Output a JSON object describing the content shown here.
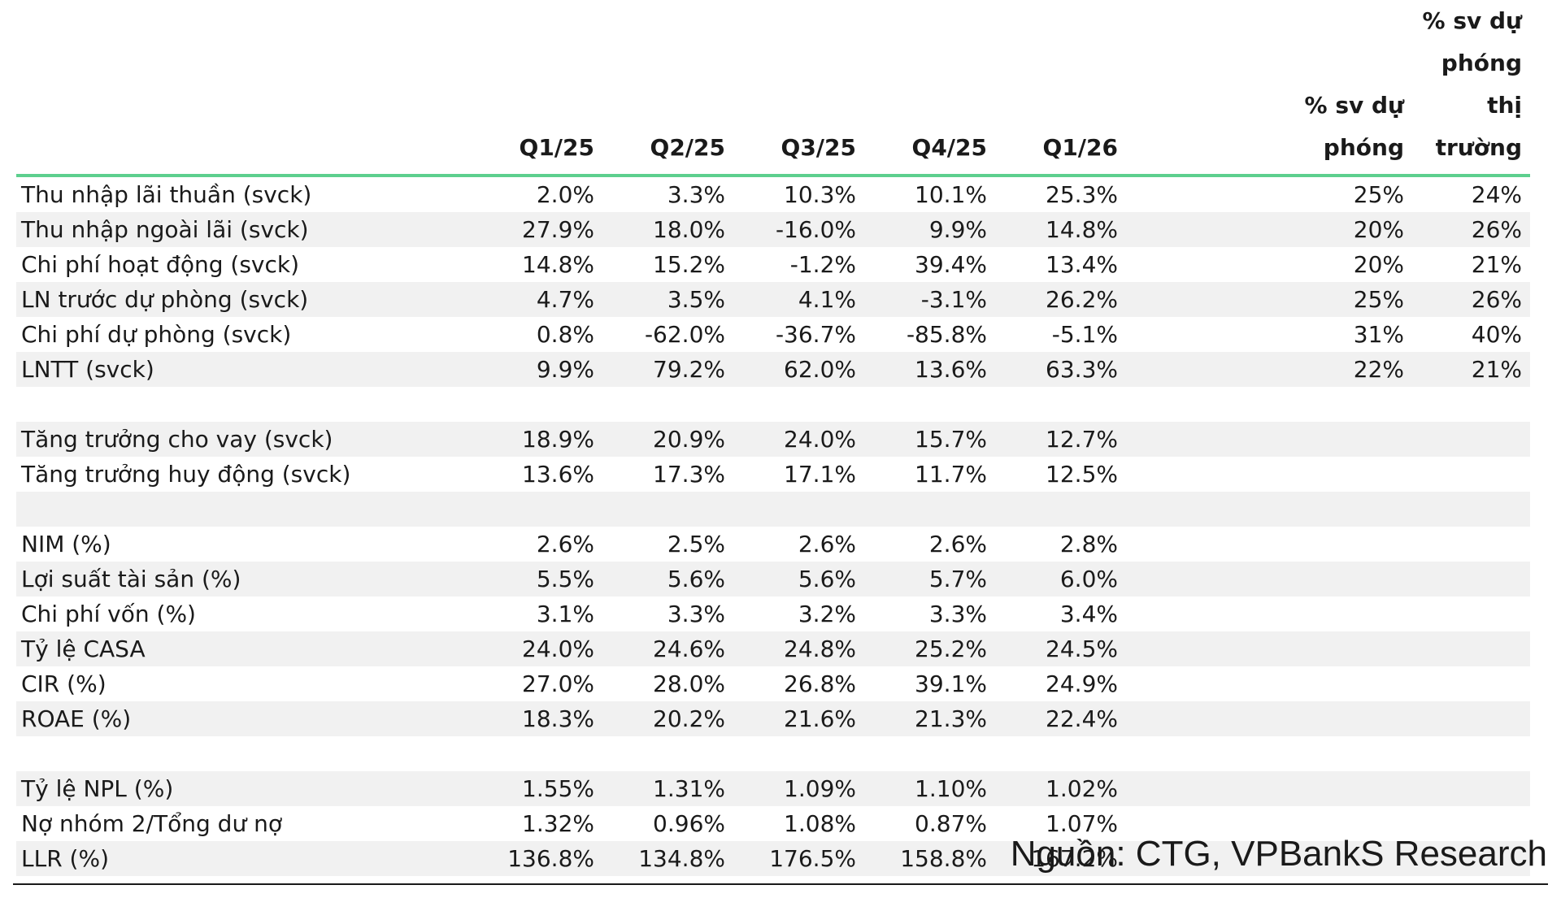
{
  "headers": {
    "label": "",
    "q1_25": "Q1/25",
    "q2_25": "Q2/25",
    "q3_25": "Q3/25",
    "q4_25": "Q4/25",
    "q1_26": "Q1/26",
    "pct_forecast": "% sv dự phóng",
    "pct_market": "% sv dự phóng thị trường"
  },
  "rows": [
    {
      "label": "Thu nhập lãi thuần (svck)",
      "v": [
        "2.0%",
        "3.3%",
        "10.3%",
        "10.1%",
        "25.3%"
      ],
      "pct_forecast": "25%",
      "pct_market": "24%"
    },
    {
      "label": "Thu nhập ngoài lãi (svck)",
      "v": [
        "27.9%",
        "18.0%",
        "-16.0%",
        "9.9%",
        "14.8%"
      ],
      "pct_forecast": "20%",
      "pct_market": "26%"
    },
    {
      "label": "Chi phí hoạt động (svck)",
      "v": [
        "14.8%",
        "15.2%",
        "-1.2%",
        "39.4%",
        "13.4%"
      ],
      "pct_forecast": "20%",
      "pct_market": "21%"
    },
    {
      "label": "LN trước dự phòng (svck)",
      "v": [
        "4.7%",
        "3.5%",
        "4.1%",
        "-3.1%",
        "26.2%"
      ],
      "pct_forecast": "25%",
      "pct_market": "26%"
    },
    {
      "label": "Chi phí dự phòng (svck)",
      "v": [
        "0.8%",
        "-62.0%",
        "-36.7%",
        "-85.8%",
        "-5.1%"
      ],
      "pct_forecast": "31%",
      "pct_market": "40%"
    },
    {
      "label": "LNTT (svck)",
      "v": [
        "9.9%",
        "79.2%",
        "62.0%",
        "13.6%",
        "63.3%"
      ],
      "pct_forecast": "22%",
      "pct_market": "21%"
    },
    {
      "label": "",
      "v": [
        "",
        "",
        "",
        "",
        ""
      ],
      "pct_forecast": "",
      "pct_market": ""
    },
    {
      "label": "Tăng trưởng cho vay (svck)",
      "v": [
        "18.9%",
        "20.9%",
        "24.0%",
        "15.7%",
        "12.7%"
      ],
      "pct_forecast": "",
      "pct_market": ""
    },
    {
      "label": "Tăng trưởng huy động (svck)",
      "v": [
        "13.6%",
        "17.3%",
        "17.1%",
        "11.7%",
        "12.5%"
      ],
      "pct_forecast": "",
      "pct_market": ""
    },
    {
      "label": "",
      "v": [
        "",
        "",
        "",
        "",
        ""
      ],
      "pct_forecast": "",
      "pct_market": ""
    },
    {
      "label": "NIM (%)",
      "v": [
        "2.6%",
        "2.5%",
        "2.6%",
        "2.6%",
        "2.8%"
      ],
      "pct_forecast": "",
      "pct_market": ""
    },
    {
      "label": "Lợi suất tài sản (%)",
      "v": [
        "5.5%",
        "5.6%",
        "5.6%",
        "5.7%",
        "6.0%"
      ],
      "pct_forecast": "",
      "pct_market": ""
    },
    {
      "label": "Chi phí vốn (%)",
      "v": [
        "3.1%",
        "3.3%",
        "3.2%",
        "3.3%",
        "3.4%"
      ],
      "pct_forecast": "",
      "pct_market": ""
    },
    {
      "label": "Tỷ lệ CASA",
      "v": [
        "24.0%",
        "24.6%",
        "24.8%",
        "25.2%",
        "24.5%"
      ],
      "pct_forecast": "",
      "pct_market": ""
    },
    {
      "label": "CIR (%)",
      "v": [
        "27.0%",
        "28.0%",
        "26.8%",
        "39.1%",
        "24.9%"
      ],
      "pct_forecast": "",
      "pct_market": ""
    },
    {
      "label": "ROAE (%)",
      "v": [
        "18.3%",
        "20.2%",
        "21.6%",
        "21.3%",
        "22.4%"
      ],
      "pct_forecast": "",
      "pct_market": ""
    },
    {
      "label": "",
      "v": [
        "",
        "",
        "",
        "",
        ""
      ],
      "pct_forecast": "",
      "pct_market": ""
    },
    {
      "label": "Tỷ lệ NPL (%)",
      "v": [
        "1.55%",
        "1.31%",
        "1.09%",
        "1.10%",
        "1.02%"
      ],
      "pct_forecast": "",
      "pct_market": ""
    },
    {
      "label": "Nợ nhóm 2/Tổng dư nợ",
      "v": [
        "1.32%",
        "0.96%",
        "1.08%",
        "0.87%",
        "1.07%"
      ],
      "pct_forecast": "",
      "pct_market": ""
    },
    {
      "label": "LLR (%)",
      "v": [
        "136.8%",
        "134.8%",
        "176.5%",
        "158.8%",
        "167.2%"
      ],
      "pct_forecast": "",
      "pct_market": ""
    }
  ],
  "source": "Nguồn: CTG, VPBankS Research"
}
